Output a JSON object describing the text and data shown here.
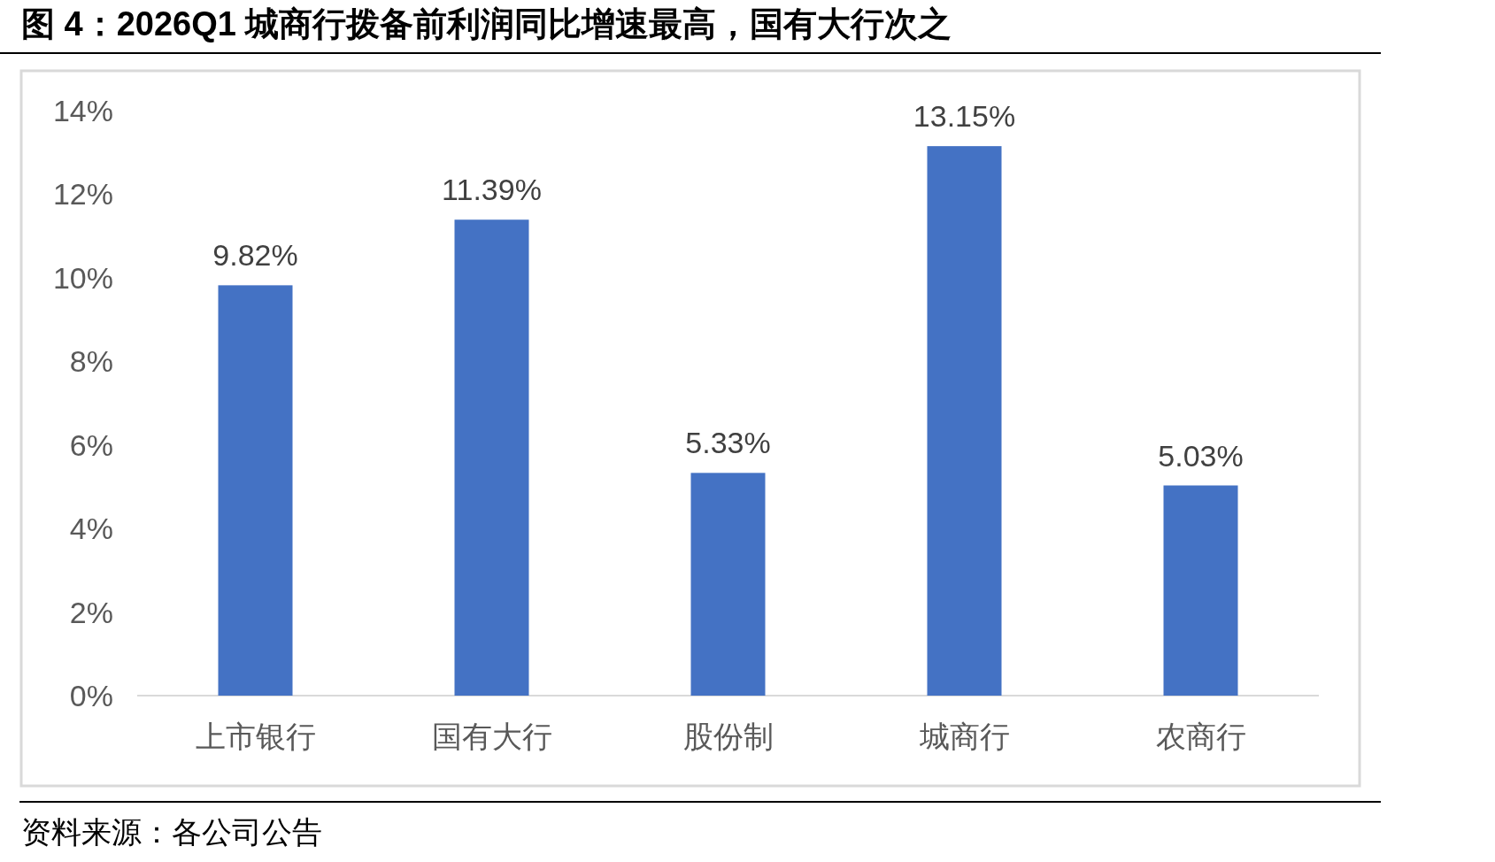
{
  "chart_data": {
    "type": "bar",
    "title": "图 4：2026Q1 城商行拨备前利润同比增速最高，国有大行次之",
    "categories": [
      "上市银行",
      "国有大行",
      "股份制",
      "城商行",
      "农商行"
    ],
    "values": [
      9.82,
      11.39,
      5.33,
      13.15,
      5.03
    ],
    "value_labels": [
      "9.82%",
      "11.39%",
      "5.33%",
      "13.15%",
      "5.03%"
    ],
    "color": "#4472c4",
    "ylim": [
      0,
      14
    ],
    "yticks": [
      {
        "value": 0,
        "label": "0%"
      },
      {
        "value": 2,
        "label": "2%"
      },
      {
        "value": 4,
        "label": "4%"
      },
      {
        "value": 6,
        "label": "6%"
      },
      {
        "value": 8,
        "label": "8%"
      },
      {
        "value": 10,
        "label": "10%"
      },
      {
        "value": 12,
        "label": "12%"
      },
      {
        "value": 14,
        "label": "14%"
      }
    ],
    "grid": false,
    "annotations": [
      "资料来源：各公司公告"
    ]
  }
}
